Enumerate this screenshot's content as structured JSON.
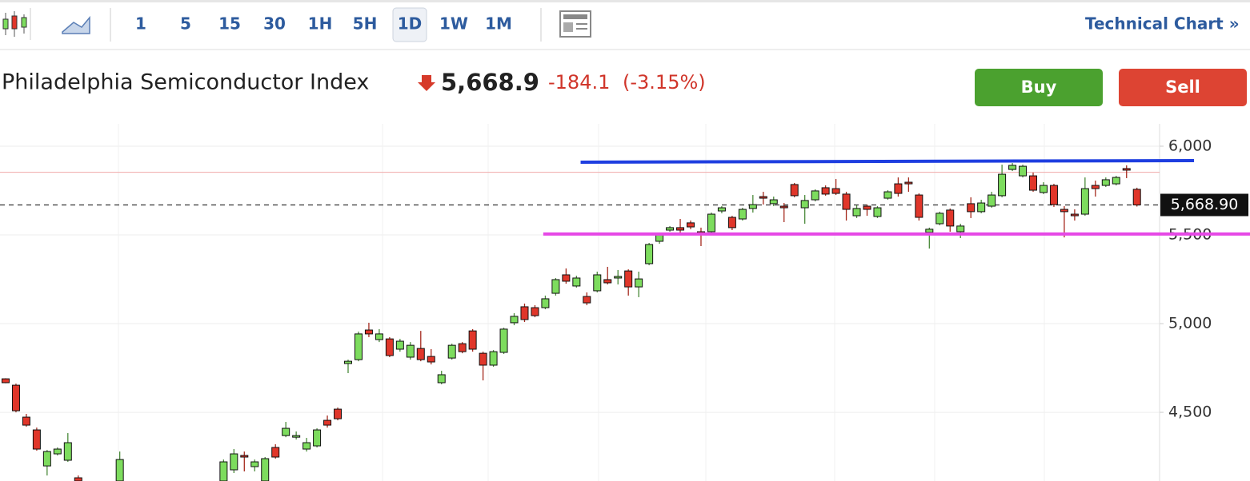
{
  "toolbar": {
    "intervals": [
      "1",
      "5",
      "15",
      "30",
      "1H",
      "5H",
      "1D",
      "1W",
      "1M"
    ],
    "selected_interval": 6,
    "link": "Technical Chart »"
  },
  "header": {
    "title": "Philadelphia Semiconductor Index",
    "price": "5,668.9",
    "change": "-184.1",
    "change_percent": "(-3.15%)"
  },
  "buttons": {
    "buy": "Buy",
    "sell": "Sell"
  },
  "chart_data": {
    "type": "candlestick",
    "categories": [
      null,
      null,
      null,
      null,
      null,
      null,
      null,
      null,
      null,
      null,
      null,
      null,
      null,
      null,
      null,
      null,
      null,
      null,
      null,
      null,
      null,
      null,
      null,
      null,
      null,
      null,
      null,
      null,
      null,
      null,
      null,
      null,
      null,
      null,
      null,
      null,
      null,
      null,
      null,
      null,
      null,
      null,
      null,
      null,
      null,
      null,
      null,
      null,
      null,
      null,
      null,
      null,
      null,
      null,
      null,
      null,
      null,
      null,
      null,
      null,
      null,
      null,
      null,
      null,
      null,
      null,
      null,
      null,
      null,
      null,
      null,
      null,
      null,
      null,
      null,
      null,
      null,
      null,
      null,
      null,
      null,
      null,
      null,
      null,
      null,
      null,
      null,
      null,
      null,
      null,
      null,
      null,
      null,
      null,
      null,
      null,
      null,
      null,
      null,
      null,
      null,
      null,
      null,
      null,
      null,
      null,
      null,
      null,
      null,
      null
    ],
    "open": [
      4689,
      4653,
      4473,
      4401,
      4198,
      4266,
      4230,
      4131,
      null,
      null,
      null,
      4113,
      null,
      null,
      null,
      null,
      null,
      null,
      null,
      null,
      null,
      4113,
      4176,
      4257,
      4194,
      4113,
      4302,
      4369,
      4360,
      4293,
      4311,
      4455,
      4518,
      4775,
      4797,
      4964,
      4910,
      4914,
      4856,
      4811,
      4860,
      4815,
      4667,
      4806,
      4887,
      4959,
      4833,
      4766,
      4838,
      5005,
      5095,
      5090,
      5090,
      5171,
      5275,
      5212,
      5153,
      5185,
      5248,
      5257,
      5297,
      5207,
      5338,
      5464,
      5527,
      5541,
      5568,
      5518,
      5518,
      5635,
      5599,
      5590,
      5649,
      5716,
      5676,
      5662,
      5784,
      5653,
      5698,
      5766,
      5761,
      5730,
      5608,
      5662,
      5604,
      5707,
      5788,
      5797,
      5725,
      5514,
      5563,
      5640,
      5518,
      5676,
      5631,
      5662,
      5721,
      5869,
      5833,
      5833,
      5739,
      5779,
      5644,
      5617,
      5617,
      5779,
      5779,
      5788,
      5874,
      5757
    ],
    "high": [
      4692,
      4662,
      4491,
      4414,
      4288,
      4302,
      4383,
      4144,
      null,
      null,
      null,
      4279,
      null,
      null,
      null,
      null,
      null,
      null,
      null,
      null,
      null,
      4234,
      4293,
      4279,
      4234,
      4248,
      4320,
      4446,
      4392,
      4356,
      4410,
      4482,
      4527,
      4797,
      4955,
      5005,
      4969,
      4924,
      4914,
      4896,
      4959,
      4856,
      4734,
      4887,
      4896,
      4969,
      4842,
      4851,
      4977,
      5059,
      5113,
      5104,
      5158,
      5257,
      5311,
      5270,
      5176,
      5293,
      5320,
      5302,
      5306,
      5293,
      5455,
      5509,
      5550,
      5590,
      5581,
      5541,
      5626,
      5662,
      5608,
      5653,
      5725,
      5743,
      5716,
      5680,
      5793,
      5725,
      5757,
      5779,
      5815,
      5743,
      5667,
      5671,
      5662,
      5752,
      5824,
      5824,
      5734,
      5541,
      5631,
      5649,
      5563,
      5712,
      5698,
      5743,
      5896,
      5905,
      5896,
      5851,
      5797,
      5788,
      5662,
      5644,
      5824,
      5806,
      5824,
      5833,
      5892,
      5766
    ],
    "low": [
      4664,
      4500,
      4419,
      4284,
      4144,
      4257,
      4221,
      4104,
      null,
      null,
      null,
      4104,
      null,
      null,
      null,
      null,
      null,
      null,
      null,
      null,
      null,
      4104,
      4158,
      4167,
      4167,
      4104,
      4239,
      4360,
      4347,
      4279,
      4302,
      4414,
      4455,
      4721,
      4788,
      4924,
      4896,
      4811,
      4842,
      4797,
      4788,
      4770,
      4658,
      4797,
      4833,
      4842,
      4680,
      4757,
      4829,
      4991,
      5009,
      5036,
      5081,
      5158,
      5225,
      5203,
      5104,
      5176,
      5221,
      5221,
      5158,
      5149,
      5329,
      5450,
      5518,
      5509,
      5532,
      5437,
      5509,
      5622,
      5527,
      5581,
      5626,
      5671,
      5662,
      5572,
      5712,
      5563,
      5689,
      5721,
      5725,
      5581,
      5595,
      5608,
      5595,
      5698,
      5716,
      5743,
      5581,
      5423,
      5554,
      5518,
      5482,
      5595,
      5622,
      5653,
      5712,
      5860,
      5824,
      5743,
      5730,
      5658,
      5486,
      5581,
      5608,
      5716,
      5770,
      5779,
      5820,
      5660
    ],
    "close": [
      4667,
      4509,
      4428,
      4293,
      4279,
      4293,
      4329,
      4113,
      null,
      null,
      null,
      4234,
      null,
      null,
      null,
      null,
      null,
      null,
      null,
      null,
      null,
      4221,
      4266,
      4248,
      4221,
      4239,
      4248,
      4410,
      4369,
      4329,
      4401,
      4428,
      4464,
      4788,
      4942,
      4942,
      4942,
      4820,
      4901,
      4878,
      4797,
      4784,
      4712,
      4878,
      4842,
      4856,
      4766,
      4842,
      4969,
      5041,
      5023,
      5045,
      5140,
      5248,
      5239,
      5257,
      5117,
      5275,
      5230,
      5266,
      5207,
      5252,
      5446,
      5500,
      5541,
      5527,
      5545,
      5509,
      5617,
      5653,
      5541,
      5644,
      5671,
      5707,
      5698,
      5653,
      5721,
      5694,
      5748,
      5730,
      5734,
      5644,
      5649,
      5644,
      5653,
      5743,
      5734,
      5788,
      5599,
      5532,
      5622,
      5550,
      5550,
      5631,
      5680,
      5725,
      5842,
      5892,
      5887,
      5752,
      5779,
      5671,
      5631,
      5608,
      5761,
      5761,
      5811,
      5824,
      5865,
      5668.9
    ],
    "up_color": "#7ddc5e",
    "down_color": "#e0362a",
    "ylim": [
      4113,
      6126
    ],
    "yticks": [
      {
        "value": 4500,
        "label": "4,500"
      },
      {
        "value": 5000,
        "label": "5,000"
      },
      {
        "value": 5500,
        "label": "5,500"
      },
      {
        "value": 6000,
        "label": "6,000"
      }
    ],
    "grid": true,
    "last_price": {
      "value": 5668.9,
      "label": "5,668.90"
    },
    "reference_line": {
      "value": 5853,
      "color": "#f0a8a8"
    },
    "trend_lines": [
      {
        "color": "#1e3ee0",
        "x": [
          55.4,
          114.5
        ],
        "y": [
          5910,
          5919
        ]
      },
      {
        "color": "#e648e6",
        "x": [
          51.8,
          119.9
        ],
        "y": [
          5505,
          5505
        ]
      }
    ]
  }
}
